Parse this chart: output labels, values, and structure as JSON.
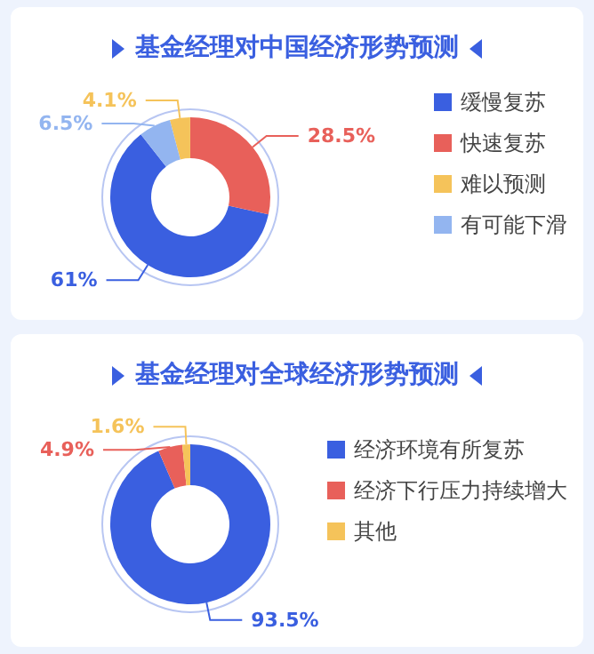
{
  "chart_data": [
    {
      "type": "donut",
      "title": "基金经理对中国经济形势预测",
      "categories": [
        "缓慢复苏",
        "快速复苏",
        "难以预测",
        "有可能下滑"
      ],
      "values": [
        61,
        28.5,
        4.1,
        6.5
      ],
      "colors": [
        "#3a5fe0",
        "#e8605a",
        "#f5c35a",
        "#93b5f0"
      ],
      "value_labels": [
        "61%",
        "28.5%",
        "4.1%",
        "6.5%"
      ],
      "legend": "right"
    },
    {
      "type": "donut",
      "title": "基金经理对全球经济形势预测",
      "categories": [
        "经济环境有所复苏",
        "经济下行压力持续增大",
        "其他"
      ],
      "values": [
        93.5,
        4.9,
        1.6
      ],
      "colors": [
        "#3a5fe0",
        "#e8605a",
        "#f5c35a"
      ],
      "value_labels": [
        "93.5%",
        "4.9%",
        "1.6%"
      ],
      "legend": "right"
    }
  ]
}
